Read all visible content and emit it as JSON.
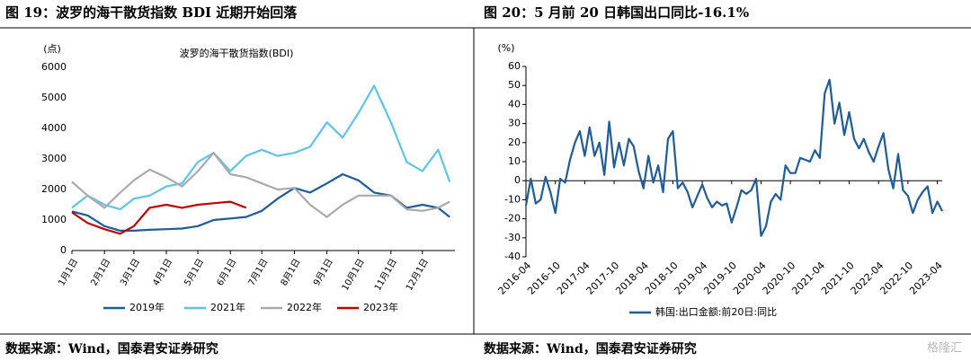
{
  "chart_data": [
    {
      "type": "line",
      "title": "图 19：波罗的海干散货指数 BDI 近期开始回落",
      "subtitle": "波罗的海干散货指数(BDI)",
      "y_label": "(点)",
      "source": "数据来源：Wind，国泰君安证券研究",
      "x": [
        0,
        15,
        31,
        46,
        59,
        74,
        90,
        105,
        120,
        135,
        151,
        166,
        181,
        196,
        212,
        227,
        243,
        258,
        273,
        288,
        304,
        319,
        334,
        349,
        360
      ],
      "xlim": [
        0,
        365
      ],
      "xticks": [
        {
          "value": 0,
          "label": "1月1日"
        },
        {
          "value": 31,
          "label": "2月1日"
        },
        {
          "value": 59,
          "label": "3月1日"
        },
        {
          "value": 90,
          "label": "4月1日"
        },
        {
          "value": 120,
          "label": "5月1日"
        },
        {
          "value": 151,
          "label": "6月1日"
        },
        {
          "value": 181,
          "label": "7月1日"
        },
        {
          "value": 212,
          "label": "8月1日"
        },
        {
          "value": 243,
          "label": "9月1日"
        },
        {
          "value": 273,
          "label": "10月1日"
        },
        {
          "value": 304,
          "label": "11月1日"
        },
        {
          "value": 334,
          "label": "12月1日"
        }
      ],
      "ylim": [
        0,
        6000
      ],
      "yticks": [
        0,
        1000,
        2000,
        3000,
        4000,
        5000,
        6000
      ],
      "series": [
        {
          "name": "2019年",
          "color": "#1f5c99",
          "values": [
            1280,
            1150,
            800,
            650,
            650,
            680,
            700,
            720,
            800,
            1000,
            1050,
            1100,
            1300,
            1700,
            2050,
            1900,
            2200,
            2500,
            2300,
            1900,
            1800,
            1400,
            1500,
            1400,
            1100
          ]
        },
        {
          "name": "2021年",
          "color": "#5ec4ec",
          "values": [
            1400,
            1800,
            1500,
            1350,
            1700,
            1800,
            2100,
            2200,
            2900,
            3200,
            2600,
            3100,
            3300,
            3100,
            3200,
            3400,
            4200,
            3700,
            4500,
            5400,
            4200,
            2900,
            2600,
            3300,
            2250
          ]
        },
        {
          "name": "2022年",
          "color": "#aaaaaa",
          "values": [
            2250,
            1800,
            1400,
            1900,
            2300,
            2650,
            2400,
            2100,
            2600,
            3200,
            2500,
            2400,
            2200,
            2000,
            2050,
            1500,
            1100,
            1500,
            1800,
            1800,
            1800,
            1350,
            1300,
            1400,
            1600
          ]
        },
        {
          "name": "2023年",
          "color": "#c00000",
          "values": [
            1250,
            900,
            700,
            550,
            800,
            1400,
            1500,
            1400,
            1500,
            1550,
            1600,
            1400,
            null,
            null,
            null,
            null,
            null,
            null,
            null,
            null,
            null,
            null,
            null,
            null,
            null
          ]
        }
      ]
    },
    {
      "type": "line",
      "title": "图 20：5 月前 20 日韩国出口同比-16.1%",
      "y_label": "(%)",
      "source": "数据来源：Wind，国泰君安证券研究",
      "categories": [
        "2016-04",
        null,
        null,
        null,
        null,
        null,
        "2016-10",
        null,
        null,
        null,
        null,
        null,
        "2017-04",
        null,
        null,
        null,
        null,
        null,
        "2017-10",
        null,
        null,
        null,
        null,
        null,
        "2018-04",
        null,
        null,
        null,
        null,
        null,
        "2018-10",
        null,
        null,
        null,
        null,
        null,
        "2019-04",
        null,
        null,
        null,
        null,
        null,
        "2019-10",
        null,
        null,
        null,
        null,
        null,
        "2020-04",
        null,
        null,
        null,
        null,
        null,
        "2020-10",
        null,
        null,
        null,
        null,
        null,
        "2021-04",
        null,
        null,
        null,
        null,
        null,
        "2021-10",
        null,
        null,
        null,
        null,
        null,
        "2022-04",
        null,
        null,
        null,
        null,
        null,
        "2022-10",
        null,
        null,
        null,
        null,
        null,
        "2023-04",
        null
      ],
      "ylim": [
        -40,
        60
      ],
      "yticks": [
        -40,
        -30,
        -20,
        -10,
        0,
        10,
        20,
        30,
        40,
        50,
        60
      ],
      "series": [
        {
          "name": "韩国:出口金额:前20日:同比",
          "color": "#1f5c99",
          "values": [
            -13,
            1,
            -12,
            -10,
            2,
            -6,
            -17,
            1,
            -1,
            11,
            20,
            26,
            13,
            28,
            13,
            20,
            3,
            31,
            7,
            20,
            8,
            22,
            18,
            5,
            -4,
            13,
            -1,
            8,
            -6,
            22,
            26,
            -4,
            -1,
            -6,
            -14,
            -8,
            -2,
            -9,
            -14,
            -11,
            -13,
            -12,
            -22,
            -14,
            -5,
            -7,
            -5,
            1,
            -29,
            -24,
            -11,
            -7,
            -10,
            8,
            4,
            4,
            12,
            11,
            10,
            16,
            12,
            46,
            53,
            30,
            41,
            24,
            36,
            22,
            17,
            22,
            15,
            10,
            18,
            25,
            6,
            -4,
            14,
            -5,
            -8,
            -17,
            -10,
            -6,
            -3,
            -17,
            -11,
            -16
          ]
        }
      ]
    }
  ],
  "watermark": "格隆汇"
}
